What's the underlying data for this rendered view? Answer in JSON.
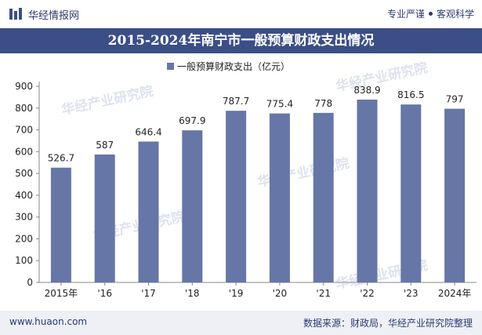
{
  "header": {
    "logo_text": "华经情报网",
    "tagline_left": "专业严谨",
    "tagline_right": "客观科学"
  },
  "title": "2015-2024年南宁市一般预算财政支出情况",
  "footer": {
    "website": "www.huaon.com",
    "source": "数据来源：财政局，华经产业研究院整理"
  },
  "watermark": "华经产业研究院",
  "colors": {
    "bar": "#6676a6",
    "title_bg": "#3b4f86",
    "footer_bg": "#eef0f5"
  },
  "chart_data": {
    "type": "bar",
    "categories": [
      "2015年",
      "'16",
      "'17",
      "'18",
      "'19",
      "'20",
      "'21",
      "'22",
      "'23",
      "2024年"
    ],
    "series": [
      {
        "name": "一般预算财政支出（亿元）",
        "values": [
          526.7,
          587,
          646.4,
          697.9,
          787.7,
          775.4,
          778,
          838.9,
          816.5,
          797
        ]
      }
    ],
    "value_labels": [
      "526.7",
      "587",
      "646.4",
      "697.9",
      "787.7",
      "775.4",
      "778",
      "838.9",
      "816.5",
      "797"
    ],
    "ylim": [
      0,
      900
    ],
    "yticks": [
      0,
      100,
      200,
      300,
      400,
      500,
      600,
      700,
      800,
      900
    ],
    "grid": false,
    "legend": "top-center"
  }
}
